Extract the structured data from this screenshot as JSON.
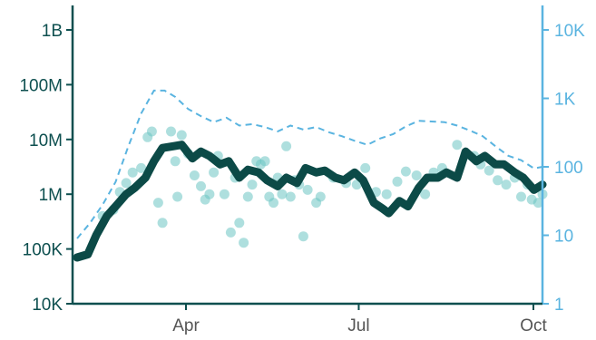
{
  "colors": {
    "left_axis": "#0d4f4f",
    "right_axis": "#5ab4e0",
    "main_line": "#0c4a47",
    "dots": "#6cc4c2",
    "dashed": "#5ab4e0",
    "x_axis": "#0d4f4f",
    "x_tick_labels": "#555555"
  },
  "chart_data": {
    "type": "line",
    "title": "",
    "xlabel": "",
    "ylabel": "",
    "x_domain": [
      0,
      218
    ],
    "x_ticks": [
      {
        "label": "Apr",
        "day": 61
      },
      {
        "label": "Jul",
        "day": 152
      },
      {
        "label": "Oct",
        "day": 244
      }
    ],
    "y_left": {
      "scale": "log",
      "range": [
        10000,
        3000000000
      ],
      "ticks": [
        {
          "value": 10000,
          "label": "10K"
        },
        {
          "value": 100000,
          "label": "100K"
        },
        {
          "value": 1000000,
          "label": "1M"
        },
        {
          "value": 10000000,
          "label": "10M"
        },
        {
          "value": 100000000,
          "label": "100M"
        },
        {
          "value": 1000000000,
          "label": "1B"
        }
      ]
    },
    "y_right": {
      "scale": "log",
      "range": [
        1,
        30000
      ],
      "ticks": [
        {
          "value": 1,
          "label": "1"
        },
        {
          "value": 10,
          "label": "10"
        },
        {
          "value": 100,
          "label": "100"
        },
        {
          "value": 1000,
          "label": "1K"
        },
        {
          "value": 10000,
          "label": "10K"
        }
      ]
    },
    "series": [
      {
        "style": "thick-line",
        "axis": "left",
        "points": [
          [
            0,
            70000
          ],
          [
            5,
            80000
          ],
          [
            9,
            180000
          ],
          [
            14,
            400000
          ],
          [
            18,
            600000
          ],
          [
            23,
            1000000
          ],
          [
            27,
            1300000
          ],
          [
            32,
            2000000
          ],
          [
            36,
            4000000
          ],
          [
            40,
            7000000
          ],
          [
            45,
            7500000
          ],
          [
            49,
            8000000
          ],
          [
            54,
            4500000
          ],
          [
            58,
            6000000
          ],
          [
            62,
            5000000
          ],
          [
            67,
            3500000
          ],
          [
            71,
            4000000
          ],
          [
            76,
            2000000
          ],
          [
            80,
            2800000
          ],
          [
            85,
            2500000
          ],
          [
            89,
            1800000
          ],
          [
            94,
            1400000
          ],
          [
            98,
            2000000
          ],
          [
            103,
            1600000
          ],
          [
            107,
            3000000
          ],
          [
            112,
            2500000
          ],
          [
            116,
            2700000
          ],
          [
            121,
            2000000
          ],
          [
            125,
            1800000
          ],
          [
            130,
            2500000
          ],
          [
            134,
            1800000
          ],
          [
            139,
            700000
          ],
          [
            143,
            550000
          ],
          [
            146,
            450000
          ],
          [
            151,
            750000
          ],
          [
            155,
            600000
          ],
          [
            160,
            1300000
          ],
          [
            164,
            2000000
          ],
          [
            169,
            2000000
          ],
          [
            173,
            2500000
          ],
          [
            178,
            2000000
          ],
          [
            182,
            6000000
          ],
          [
            187,
            4000000
          ],
          [
            191,
            5000000
          ],
          [
            196,
            3500000
          ],
          [
            200,
            3500000
          ],
          [
            205,
            2500000
          ],
          [
            209,
            2000000
          ],
          [
            214,
            1200000
          ],
          [
            218,
            1500000
          ]
        ]
      },
      {
        "style": "dots",
        "axis": "left",
        "points": [
          [
            12,
            400000
          ],
          [
            17,
            520000
          ],
          [
            20,
            1100000
          ],
          [
            23,
            1600000
          ],
          [
            26,
            2500000
          ],
          [
            30,
            3000000
          ],
          [
            33,
            11000000
          ],
          [
            35,
            14000000
          ],
          [
            38,
            700000
          ],
          [
            40,
            300000
          ],
          [
            44,
            14000000
          ],
          [
            46,
            4000000
          ],
          [
            47,
            900000
          ],
          [
            49,
            12000000
          ],
          [
            52,
            5500000
          ],
          [
            55,
            2200000
          ],
          [
            58,
            1400000
          ],
          [
            60,
            800000
          ],
          [
            62,
            1000000
          ],
          [
            64,
            2500000
          ],
          [
            66,
            5000000
          ],
          [
            69,
            1000000
          ],
          [
            72,
            200000
          ],
          [
            74,
            2000000
          ],
          [
            76,
            300000
          ],
          [
            78,
            130000
          ],
          [
            80,
            900000
          ],
          [
            82,
            1500000
          ],
          [
            84,
            4000000
          ],
          [
            86,
            3500000
          ],
          [
            88,
            4000000
          ],
          [
            90,
            900000
          ],
          [
            92,
            700000
          ],
          [
            94,
            2000000
          ],
          [
            96,
            1000000
          ],
          [
            98,
            7500000
          ],
          [
            100,
            900000
          ],
          [
            102,
            1800000
          ],
          [
            104,
            1500000
          ],
          [
            106,
            170000
          ],
          [
            108,
            1200000
          ],
          [
            112,
            700000
          ],
          [
            114,
            900000
          ],
          [
            120,
            2000000
          ],
          [
            126,
            1600000
          ],
          [
            131,
            1500000
          ],
          [
            135,
            3000000
          ],
          [
            140,
            1100000
          ],
          [
            145,
            1000000
          ],
          [
            150,
            1700000
          ],
          [
            154,
            2600000
          ],
          [
            159,
            2200000
          ],
          [
            163,
            1000000
          ],
          [
            167,
            2500000
          ],
          [
            171,
            3000000
          ],
          [
            178,
            8000000
          ],
          [
            182,
            5500000
          ],
          [
            186,
            5000000
          ],
          [
            189,
            3500000
          ],
          [
            193,
            2700000
          ],
          [
            197,
            1800000
          ],
          [
            201,
            1500000
          ],
          [
            205,
            2000000
          ],
          [
            208,
            900000
          ],
          [
            211,
            1500000
          ],
          [
            213,
            800000
          ],
          [
            216,
            700000
          ],
          [
            218,
            1000000
          ]
        ]
      },
      {
        "style": "dashed",
        "axis": "right",
        "points": [
          [
            0,
            9
          ],
          [
            6,
            15
          ],
          [
            12,
            28
          ],
          [
            18,
            60
          ],
          [
            24,
            200
          ],
          [
            30,
            600
          ],
          [
            36,
            1300
          ],
          [
            41,
            1300
          ],
          [
            46,
            1050
          ],
          [
            52,
            700
          ],
          [
            58,
            550
          ],
          [
            64,
            450
          ],
          [
            70,
            520
          ],
          [
            76,
            400
          ],
          [
            82,
            420
          ],
          [
            88,
            380
          ],
          [
            94,
            330
          ],
          [
            100,
            400
          ],
          [
            106,
            350
          ],
          [
            112,
            380
          ],
          [
            118,
            320
          ],
          [
            124,
            280
          ],
          [
            130,
            240
          ],
          [
            136,
            210
          ],
          [
            142,
            260
          ],
          [
            148,
            300
          ],
          [
            154,
            390
          ],
          [
            160,
            470
          ],
          [
            166,
            460
          ],
          [
            172,
            450
          ],
          [
            178,
            400
          ],
          [
            184,
            340
          ],
          [
            190,
            280
          ],
          [
            196,
            200
          ],
          [
            202,
            145
          ],
          [
            208,
            125
          ],
          [
            214,
            95
          ],
          [
            218,
            100
          ]
        ]
      }
    ]
  }
}
